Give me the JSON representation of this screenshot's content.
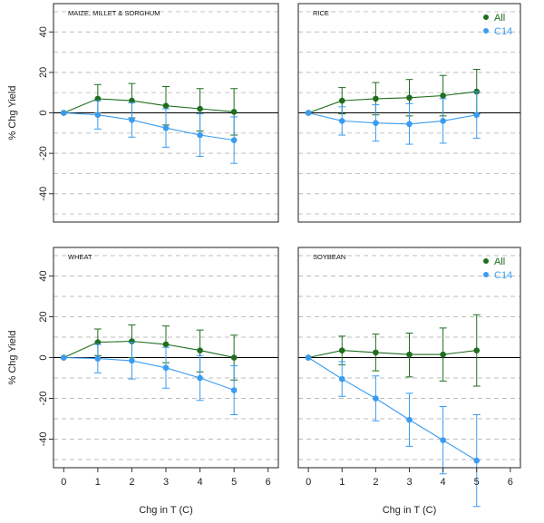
{
  "figure": {
    "xlabel": "Chg in T (C)",
    "ylabel": "% Chg Yield",
    "xticks": [
      "0",
      "1",
      "2",
      "3",
      "4",
      "5",
      "6"
    ],
    "yticks": [
      "-40",
      "-20",
      "0",
      "20",
      "40"
    ],
    "colors": {
      "all": "#1f6e1f",
      "c14": "#3a9cf0",
      "grid": "#bdbdbd"
    }
  },
  "chart_data": [
    {
      "type": "line",
      "title": "MAIZE, MILLET & SORGHUM",
      "xlabel": "Chg in T (C)",
      "ylabel": "% Chg Yield",
      "xlim": [
        -0.3,
        6.3
      ],
      "ylim": [
        -54,
        54
      ],
      "legend": null,
      "series": [
        {
          "name": "All",
          "x": [
            0,
            1,
            2,
            3,
            4,
            5
          ],
          "y": [
            0,
            7,
            6,
            3.5,
            2,
            0.5
          ],
          "err_lo": [
            0,
            7,
            8.5,
            9.5,
            11,
            11.5
          ],
          "err_hi": [
            0,
            7,
            8.5,
            9.5,
            10,
            11.5
          ]
        },
        {
          "name": "C14",
          "x": [
            0,
            1,
            2,
            3,
            4,
            5
          ],
          "y": [
            0,
            -1,
            -3.5,
            -7.5,
            -11,
            -13.5
          ],
          "err_lo": [
            0,
            7,
            8.5,
            9.5,
            10.5,
            11.5
          ],
          "err_hi": [
            0,
            7,
            8.5,
            9.5,
            10.5,
            11.5
          ]
        }
      ]
    },
    {
      "type": "line",
      "title": "RICE",
      "xlabel": "Chg in T (C)",
      "ylabel": "% Chg Yield",
      "xlim": [
        -0.3,
        6.3
      ],
      "ylim": [
        -54,
        54
      ],
      "legend": "top-right",
      "series": [
        {
          "name": "All",
          "x": [
            0,
            1,
            2,
            3,
            4,
            5
          ],
          "y": [
            0,
            6,
            7,
            7.5,
            8.5,
            10.5
          ],
          "err_lo": [
            0,
            6.5,
            8,
            9,
            10,
            11
          ],
          "err_hi": [
            0,
            6.5,
            8,
            9,
            10,
            11
          ]
        },
        {
          "name": "C14",
          "x": [
            0,
            1,
            2,
            3,
            4,
            5
          ],
          "y": [
            0,
            -4,
            -5,
            -5.5,
            -4,
            -1
          ],
          "err_lo": [
            0,
            7,
            9,
            10,
            11,
            11.5
          ],
          "err_hi": [
            0,
            7,
            9,
            10,
            11,
            11.5
          ]
        }
      ]
    },
    {
      "type": "line",
      "title": "WHEAT",
      "xlabel": "Chg in T (C)",
      "ylabel": "% Chg Yield",
      "xlim": [
        -0.3,
        6.3
      ],
      "ylim": [
        -54,
        54
      ],
      "legend": null,
      "series": [
        {
          "name": "All",
          "x": [
            0,
            1,
            2,
            3,
            4,
            5
          ],
          "y": [
            0,
            7.5,
            8,
            6.5,
            3.5,
            0
          ],
          "err_lo": [
            0,
            6.5,
            8,
            9,
            10.5,
            11
          ],
          "err_hi": [
            0,
            6.5,
            8,
            9,
            10,
            11
          ]
        },
        {
          "name": "C14",
          "x": [
            0,
            1,
            2,
            3,
            4,
            5
          ],
          "y": [
            0,
            -0.5,
            -1.5,
            -5,
            -10,
            -16
          ],
          "err_lo": [
            0,
            7,
            9,
            10,
            11,
            12
          ],
          "err_hi": [
            0,
            7,
            9,
            10,
            11,
            12
          ]
        }
      ]
    },
    {
      "type": "line",
      "title": "SOYBEAN",
      "xlabel": "Chg in T (C)",
      "ylabel": "% Chg Yield",
      "xlim": [
        -0.3,
        6.3
      ],
      "ylim": [
        -54,
        54
      ],
      "legend": "top-right",
      "series": [
        {
          "name": "All",
          "x": [
            0,
            1,
            2,
            3,
            4,
            5
          ],
          "y": [
            0,
            3.5,
            2.5,
            1.5,
            1.5,
            3.5
          ],
          "err_lo": [
            0,
            7,
            9,
            11,
            13,
            17.5
          ],
          "err_hi": [
            0,
            7,
            9,
            10.5,
            13,
            17.5
          ]
        },
        {
          "name": "C14",
          "x": [
            0,
            1,
            2,
            3,
            4,
            5
          ],
          "y": [
            0,
            -10.5,
            -20,
            -30.5,
            -40.5,
            -50.5
          ],
          "err_lo": [
            0,
            8.5,
            11,
            13,
            16.5,
            22.5
          ],
          "err_hi": [
            0,
            8.5,
            11,
            13,
            16.5,
            22.5
          ]
        }
      ]
    }
  ]
}
